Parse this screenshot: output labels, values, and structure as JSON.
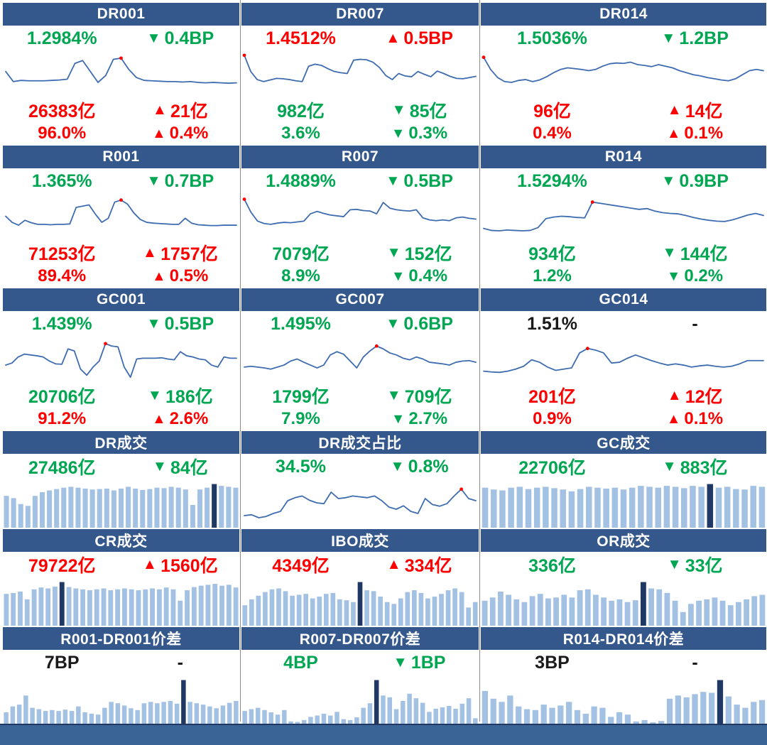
{
  "colors": {
    "header_bg": "#35588C",
    "footer_bg": "#3A6496",
    "green": "#00A651",
    "red": "#FE0000",
    "black": "#1a1a1a",
    "line": "#3E6CB0",
    "dot": "#FF0000",
    "bar_light": "#A3C2E3",
    "bar_dark": "#1F3864",
    "divider": "#8c8c8c"
  },
  "footer": {
    "label": ""
  },
  "chart_data": [
    {
      "name": "dr001",
      "title": "DR001",
      "kind": "rate",
      "type": "line",
      "rows": [
        [
          {
            "text": "1.2984%",
            "color": "green"
          },
          {
            "dir": "▼",
            "text": "0.4BP",
            "color": "green"
          }
        ],
        [
          {
            "text": "26383亿",
            "color": "red"
          },
          {
            "dir": "▲",
            "text": "21亿",
            "color": "red"
          }
        ],
        [
          {
            "text": "96.0%",
            "color": "red"
          },
          {
            "dir": "▲",
            "text": "0.4%",
            "color": "red"
          }
        ]
      ],
      "values": [
        55,
        30,
        33,
        32,
        32,
        32,
        33,
        34,
        36,
        75,
        82,
        55,
        28,
        45,
        85,
        88,
        60,
        40,
        33,
        32,
        31,
        30,
        30,
        29,
        30,
        28,
        27,
        28,
        27,
        26,
        27
      ],
      "dot": 15
    },
    {
      "name": "dr007",
      "title": "DR007",
      "kind": "rate",
      "type": "line",
      "rows": [
        [
          {
            "text": "1.4512%",
            "color": "red"
          },
          {
            "dir": "▲",
            "text": "0.5BP",
            "color": "red"
          }
        ],
        [
          {
            "text": "982亿",
            "color": "green"
          },
          {
            "dir": "▼",
            "text": "85亿",
            "color": "green"
          }
        ],
        [
          {
            "text": "3.6%",
            "color": "green"
          },
          {
            "dir": "▼",
            "text": "0.3%",
            "color": "green"
          }
        ]
      ],
      "values": [
        95,
        55,
        35,
        30,
        34,
        38,
        37,
        35,
        32,
        30,
        68,
        73,
        70,
        62,
        55,
        52,
        50,
        83,
        85,
        84,
        78,
        65,
        45,
        35,
        50,
        44,
        42,
        55,
        48,
        42,
        56,
        50,
        43,
        38,
        37,
        40,
        43
      ],
      "dot": 0
    },
    {
      "name": "dr014",
      "title": "DR014",
      "kind": "rate",
      "type": "line",
      "rows": [
        [
          {
            "text": "1.5036%",
            "color": "green"
          },
          {
            "dir": "▼",
            "text": "1.2BP",
            "color": "green"
          }
        ],
        [
          {
            "text": "96亿",
            "color": "red"
          },
          {
            "dir": "▲",
            "text": "14亿",
            "color": "red"
          }
        ],
        [
          {
            "text": "0.4%",
            "color": "red"
          },
          {
            "dir": "▲",
            "text": "0.1%",
            "color": "red"
          }
        ]
      ],
      "values": [
        90,
        60,
        40,
        30,
        28,
        33,
        35,
        30,
        34,
        42,
        52,
        60,
        64,
        62,
        60,
        57,
        60,
        68,
        74,
        76,
        75,
        78,
        72,
        70,
        67,
        72,
        68,
        64,
        57,
        52,
        47,
        44,
        40,
        37,
        34,
        32,
        37,
        47,
        57,
        60,
        57
      ],
      "dot": 0
    },
    {
      "name": "r001",
      "title": "R001",
      "kind": "rate",
      "type": "line",
      "rows": [
        [
          {
            "text": "1.365%",
            "color": "green"
          },
          {
            "dir": "▼",
            "text": "0.7BP",
            "color": "green"
          }
        ],
        [
          {
            "text": "71253亿",
            "color": "red"
          },
          {
            "dir": "▲",
            "text": "1757亿",
            "color": "red"
          }
        ],
        [
          {
            "text": "89.4%",
            "color": "red"
          },
          {
            "dir": "▲",
            "text": "0.5%",
            "color": "red"
          }
        ]
      ],
      "values": [
        50,
        35,
        28,
        40,
        34,
        30,
        30,
        29,
        30,
        30,
        31,
        72,
        75,
        78,
        55,
        35,
        45,
        85,
        90,
        80,
        58,
        42,
        35,
        33,
        32,
        31,
        30,
        30,
        45,
        33,
        29,
        28,
        27,
        27,
        28,
        28,
        28
      ],
      "dot": 18
    },
    {
      "name": "r007",
      "title": "R007",
      "kind": "rate",
      "type": "line",
      "rows": [
        [
          {
            "text": "1.4889%",
            "color": "green"
          },
          {
            "dir": "▼",
            "text": "0.5BP",
            "color": "green"
          }
        ],
        [
          {
            "text": "7079亿",
            "color": "green"
          },
          {
            "dir": "▼",
            "text": "152亿",
            "color": "green"
          }
        ],
        [
          {
            "text": "8.9%",
            "color": "green"
          },
          {
            "dir": "▼",
            "text": "0.4%",
            "color": "green"
          }
        ]
      ],
      "values": [
        92,
        60,
        38,
        32,
        30,
        33,
        35,
        34,
        36,
        38,
        56,
        62,
        57,
        53,
        51,
        49,
        66,
        67,
        64,
        63,
        56,
        84,
        70,
        66,
        64,
        63,
        66,
        46,
        41,
        39,
        41,
        39,
        46,
        48,
        45,
        43
      ],
      "dot": 0
    },
    {
      "name": "r014",
      "title": "R014",
      "kind": "rate",
      "type": "line",
      "rows": [
        [
          {
            "text": "1.5294%",
            "color": "green"
          },
          {
            "dir": "▼",
            "text": "0.9BP",
            "color": "green"
          }
        ],
        [
          {
            "text": "934亿",
            "color": "green"
          },
          {
            "dir": "▼",
            "text": "144亿",
            "color": "green"
          }
        ],
        [
          {
            "text": "1.2%",
            "color": "green"
          },
          {
            "dir": "▼",
            "text": "0.2%",
            "color": "green"
          }
        ]
      ],
      "values": [
        20,
        15,
        14,
        16,
        15,
        14,
        15,
        22,
        44,
        48,
        50,
        49,
        47,
        46,
        85,
        82,
        79,
        76,
        73,
        70,
        67,
        69,
        63,
        59,
        57,
        56,
        52,
        47,
        43,
        40,
        38,
        37,
        41,
        47,
        53,
        57,
        52
      ],
      "dot": 14
    },
    {
      "name": "gc001",
      "title": "GC001",
      "kind": "rate",
      "type": "line",
      "rows": [
        [
          {
            "text": "1.439%",
            "color": "green"
          },
          {
            "dir": "▼",
            "text": "0.5BP",
            "color": "green"
          }
        ],
        [
          {
            "text": "20706亿",
            "color": "green"
          },
          {
            "dir": "▼",
            "text": "186亿",
            "color": "green"
          }
        ],
        [
          {
            "text": "91.2%",
            "color": "red"
          },
          {
            "dir": "▲",
            "text": "2.6%",
            "color": "red"
          }
        ]
      ],
      "values": [
        35,
        40,
        55,
        62,
        60,
        58,
        55,
        45,
        38,
        37,
        75,
        70,
        25,
        10,
        30,
        45,
        88,
        82,
        80,
        30,
        5,
        50,
        52,
        52,
        52,
        53,
        50,
        48,
        68,
        58,
        55,
        50,
        48,
        35,
        30,
        55,
        52,
        52
      ],
      "dot": 16
    },
    {
      "name": "gc007",
      "title": "GC007",
      "kind": "rate",
      "type": "line",
      "rows": [
        [
          {
            "text": "1.495%",
            "color": "green"
          },
          {
            "dir": "▼",
            "text": "0.6BP",
            "color": "green"
          }
        ],
        [
          {
            "text": "1799亿",
            "color": "green"
          },
          {
            "dir": "▼",
            "text": "709亿",
            "color": "green"
          }
        ],
        [
          {
            "text": "7.9%",
            "color": "green"
          },
          {
            "dir": "▼",
            "text": "2.7%",
            "color": "green"
          }
        ]
      ],
      "values": [
        30,
        32,
        30,
        28,
        25,
        30,
        35,
        45,
        50,
        42,
        35,
        28,
        35,
        60,
        68,
        62,
        45,
        28,
        55,
        70,
        82,
        75,
        65,
        60,
        52,
        48,
        55,
        50,
        42,
        40,
        38,
        35,
        42,
        45,
        46,
        42
      ],
      "dot": 20
    },
    {
      "name": "gc014",
      "title": "GC014",
      "kind": "rate",
      "type": "line",
      "rows": [
        [
          {
            "text": "1.51%",
            "color": "black"
          },
          {
            "dir": "",
            "text": "-",
            "color": "black"
          }
        ],
        [
          {
            "text": "201亿",
            "color": "red"
          },
          {
            "dir": "▲",
            "text": "12亿",
            "color": "red"
          }
        ],
        [
          {
            "text": "0.9%",
            "color": "red"
          },
          {
            "dir": "▲",
            "text": "0.1%",
            "color": "red"
          }
        ]
      ],
      "values": [
        20,
        18,
        17,
        20,
        25,
        32,
        48,
        42,
        30,
        22,
        25,
        28,
        65,
        76,
        72,
        65,
        40,
        42,
        52,
        60,
        53,
        46,
        40,
        35,
        38,
        35,
        30,
        33,
        35,
        32,
        30,
        32,
        38,
        46,
        46,
        46
      ],
      "dot": 13
    },
    {
      "name": "dr-volume",
      "title": "DR成交",
      "kind": "volume",
      "type": "bar",
      "rows": [
        [
          {
            "text": "27486亿",
            "color": "green"
          },
          {
            "dir": "▼",
            "text": "84亿",
            "color": "green"
          }
        ]
      ],
      "values": [
        70,
        65,
        52,
        48,
        70,
        78,
        82,
        85,
        88,
        90,
        88,
        86,
        84,
        85,
        86,
        82,
        86,
        90,
        86,
        83,
        85,
        88,
        87,
        90,
        88,
        84,
        50,
        84,
        88,
        96,
        92,
        90,
        88
      ],
      "highlight": 29
    },
    {
      "name": "dr-volume-share",
      "title": "DR成交占比",
      "kind": "share",
      "type": "line",
      "rows": [
        [
          {
            "text": "34.5%",
            "color": "green"
          },
          {
            "dir": "▼",
            "text": "0.8%",
            "color": "green"
          }
        ]
      ],
      "values": [
        20,
        22,
        15,
        18,
        25,
        30,
        55,
        62,
        66,
        56,
        50,
        48,
        75,
        60,
        62,
        66,
        64,
        62,
        66,
        55,
        40,
        35,
        43,
        30,
        25,
        60,
        46,
        42,
        48,
        66,
        82,
        60,
        55
      ],
      "dot": 30
    },
    {
      "name": "gc-volume",
      "title": "GC成交",
      "kind": "volume",
      "type": "bar",
      "rows": [
        [
          {
            "text": "22706亿",
            "color": "green"
          },
          {
            "dir": "▼",
            "text": "883亿",
            "color": "green"
          }
        ]
      ],
      "values": [
        88,
        84,
        82,
        88,
        90,
        85,
        88,
        90,
        87,
        84,
        80,
        85,
        90,
        88,
        86,
        88,
        84,
        88,
        92,
        90,
        88,
        92,
        90,
        87,
        92,
        90,
        96,
        88,
        90,
        85,
        84,
        92,
        90
      ],
      "highlight": 26
    },
    {
      "name": "cr-volume",
      "title": "CR成交",
      "kind": "volume",
      "type": "bar",
      "rows": [
        [
          {
            "text": "79722亿",
            "color": "red"
          },
          {
            "dir": "▲",
            "text": "1560亿",
            "color": "red"
          }
        ]
      ],
      "values": [
        70,
        72,
        75,
        58,
        80,
        84,
        82,
        86,
        96,
        85,
        82,
        80,
        78,
        80,
        82,
        78,
        80,
        82,
        80,
        78,
        80,
        82,
        80,
        84,
        80,
        55,
        78,
        85,
        88,
        90,
        92,
        88,
        90,
        84
      ],
      "highlight": 8
    },
    {
      "name": "ibo-volume",
      "title": "IBO成交",
      "kind": "volume",
      "type": "bar",
      "rows": [
        [
          {
            "text": "4349亿",
            "color": "red"
          },
          {
            "dir": "▲",
            "text": "334亿",
            "color": "red"
          }
        ]
      ],
      "values": [
        45,
        58,
        66,
        74,
        80,
        82,
        76,
        66,
        68,
        70,
        60,
        64,
        70,
        72,
        58,
        56,
        52,
        96,
        78,
        76,
        64,
        52,
        48,
        60,
        74,
        78,
        72,
        60,
        64,
        70,
        78,
        82,
        74,
        40,
        52
      ],
      "highlight": 17
    },
    {
      "name": "or-volume",
      "title": "OR成交",
      "kind": "volume",
      "type": "bar",
      "rows": [
        [
          {
            "text": "336亿",
            "color": "green"
          },
          {
            "dir": "▼",
            "text": "33亿",
            "color": "green"
          }
        ]
      ],
      "values": [
        55,
        62,
        75,
        68,
        58,
        52,
        65,
        70,
        60,
        62,
        68,
        62,
        78,
        80,
        68,
        62,
        55,
        58,
        52,
        56,
        96,
        82,
        80,
        72,
        55,
        30,
        48,
        55,
        58,
        62,
        55,
        45,
        52,
        58,
        65,
        68
      ],
      "highlight": 20
    },
    {
      "name": "r001-dr001-spread",
      "title": "R001-DR001价差",
      "kind": "spread",
      "type": "bar",
      "rows": [
        [
          {
            "text": "7BP",
            "color": "black"
          },
          {
            "dir": "",
            "text": "-",
            "color": "black"
          }
        ]
      ],
      "values": [
        25,
        38,
        42,
        62,
        35,
        32,
        28,
        30,
        28,
        31,
        28,
        38,
        25,
        22,
        20,
        35,
        48,
        45,
        40,
        34,
        30,
        45,
        48,
        45,
        48,
        50,
        44,
        96,
        48,
        45,
        42,
        38,
        34,
        40,
        46,
        50
      ],
      "highlight": 27
    },
    {
      "name": "r007-dr007-spread",
      "title": "R007-DR007价差",
      "kind": "spread",
      "type": "bar",
      "rows": [
        [
          {
            "text": "4BP",
            "color": "green"
          },
          {
            "dir": "▼",
            "text": "1BP",
            "color": "green"
          }
        ]
      ],
      "values": [
        28,
        32,
        35,
        30,
        25,
        20,
        30,
        5,
        4,
        8,
        15,
        18,
        22,
        18,
        26,
        10,
        8,
        14,
        35,
        45,
        96,
        62,
        58,
        32,
        50,
        66,
        56,
        46,
        26,
        33,
        36,
        39,
        33,
        44,
        56,
        12
      ],
      "highlight": 20
    },
    {
      "name": "r014-dr014-spread",
      "title": "R014-DR014价差",
      "kind": "spread",
      "type": "bar",
      "rows": [
        [
          {
            "text": "3BP",
            "color": "black"
          },
          {
            "dir": "",
            "text": "-",
            "color": "black"
          }
        ]
      ],
      "values": [
        72,
        55,
        48,
        62,
        38,
        32,
        30,
        42,
        35,
        40,
        48,
        30,
        22,
        38,
        35,
        15,
        25,
        20,
        5,
        8,
        3,
        6,
        55,
        62,
        58,
        65,
        70,
        68,
        96,
        60,
        42,
        35,
        48,
        52
      ],
      "highlight": 28
    }
  ]
}
